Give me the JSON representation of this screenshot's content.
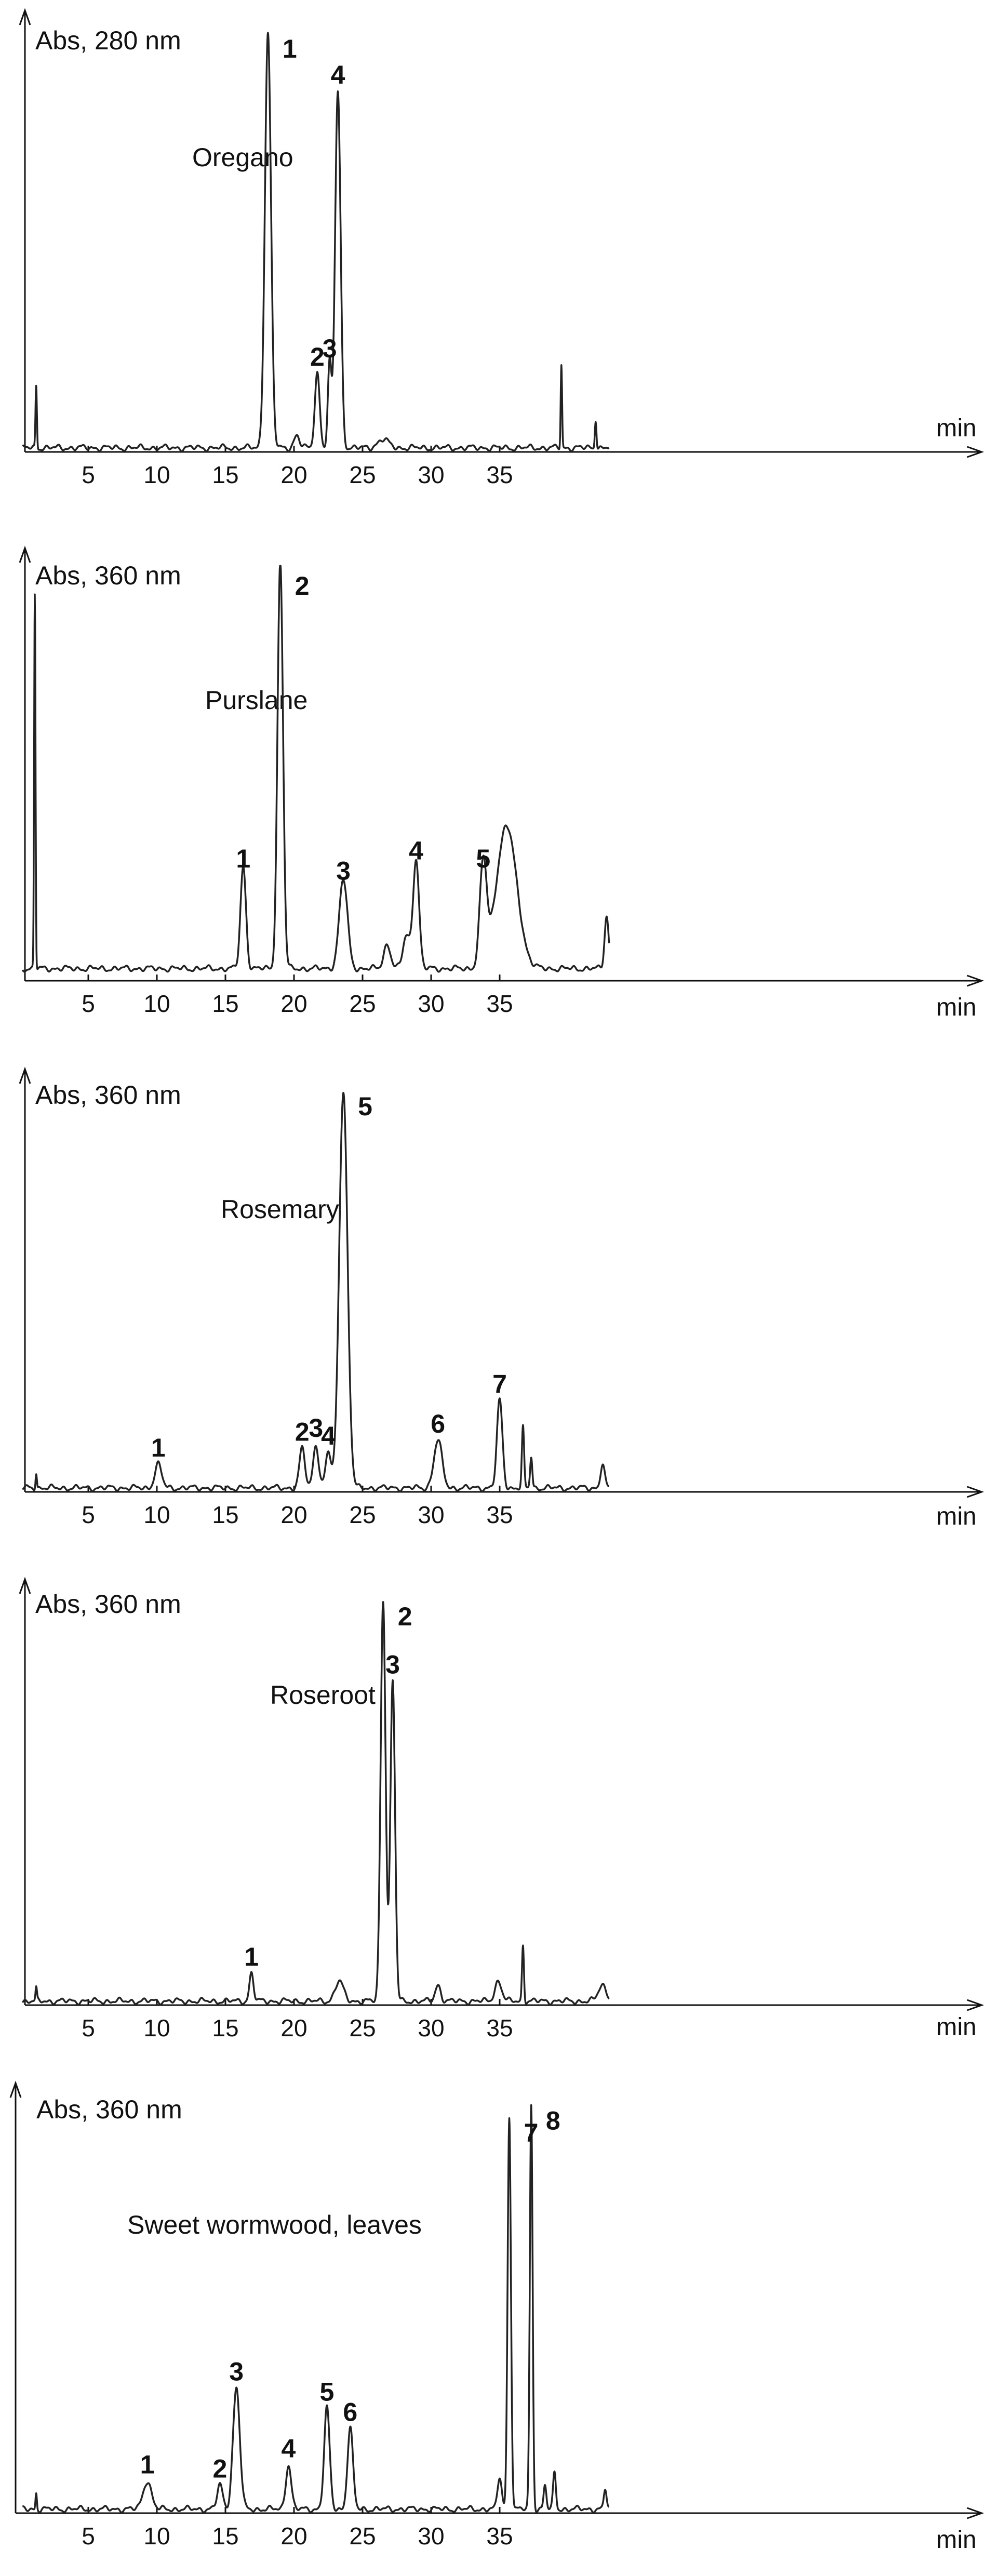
{
  "chart_data": [
    {
      "type": "line",
      "sample": "Oregano",
      "ylabel": "Abs, 280 nm",
      "xlabel": "min",
      "xlim": [
        0,
        43
      ],
      "xticks": [
        5,
        10,
        15,
        20,
        25,
        30,
        35
      ],
      "xtick_labels": [
        "5",
        "10",
        "15",
        "20",
        "25",
        "30",
        "35"
      ],
      "ylim": [
        0,
        1
      ],
      "grid": false,
      "baseline": 0.01,
      "peaks": [
        {
          "x": 1.2,
          "h": 0.15,
          "w": 0.05
        },
        {
          "x": 18.1,
          "h": 1.0,
          "w": 0.22
        },
        {
          "x": 20.2,
          "h": 0.03,
          "w": 0.2
        },
        {
          "x": 21.7,
          "h": 0.18,
          "w": 0.18
        },
        {
          "x": 22.6,
          "h": 0.2,
          "w": 0.13
        },
        {
          "x": 23.2,
          "h": 0.86,
          "w": 0.2
        },
        {
          "x": 26.5,
          "h": 0.02,
          "w": 0.4
        },
        {
          "x": 39.5,
          "h": 0.2,
          "w": 0.05
        },
        {
          "x": 42.0,
          "h": 0.07,
          "w": 0.06
        }
      ],
      "peak_labels": [
        {
          "label": "1",
          "x": 18.1,
          "y": 1.0
        },
        {
          "label": "2",
          "x": 21.7,
          "y": 0.18
        },
        {
          "label": "3",
          "x": 22.6,
          "y": 0.2
        },
        {
          "label": "4",
          "x": 23.2,
          "y": 0.86
        }
      ]
    },
    {
      "type": "line",
      "sample": "Purslane",
      "ylabel": "Abs, 360 nm",
      "xlabel": "min",
      "xlim": [
        0,
        43
      ],
      "xticks": [
        5,
        10,
        15,
        20,
        25,
        30,
        35
      ],
      "xtick_labels": [
        "5",
        "10",
        "15",
        "20",
        "25",
        "30",
        "35"
      ],
      "ylim": [
        0,
        1
      ],
      "grid": false,
      "baseline": 0.03,
      "peaks": [
        {
          "x": 1.1,
          "h": 0.92,
          "w": 0.05
        },
        {
          "x": 16.3,
          "h": 0.25,
          "w": 0.2
        },
        {
          "x": 19.0,
          "h": 1.0,
          "w": 0.2
        },
        {
          "x": 23.6,
          "h": 0.22,
          "w": 0.3
        },
        {
          "x": 26.8,
          "h": 0.06,
          "w": 0.25
        },
        {
          "x": 28.2,
          "h": 0.08,
          "w": 0.25
        },
        {
          "x": 28.9,
          "h": 0.27,
          "w": 0.22
        },
        {
          "x": 33.8,
          "h": 0.25,
          "w": 0.25
        },
        {
          "x": 35.5,
          "h": 0.35,
          "w": 0.75
        },
        {
          "x": 42.8,
          "h": 0.13,
          "w": 0.15
        }
      ],
      "peak_labels": [
        {
          "label": "1",
          "x": 16.3,
          "y": 0.25
        },
        {
          "label": "2",
          "x": 19.0,
          "y": 1.0
        },
        {
          "label": "3",
          "x": 23.6,
          "y": 0.22
        },
        {
          "label": "4",
          "x": 28.9,
          "y": 0.27
        },
        {
          "label": "5",
          "x": 33.8,
          "y": 0.25
        }
      ]
    },
    {
      "type": "line",
      "sample": "Rosemary",
      "ylabel": "Abs, 360 nm",
      "xlabel": "min",
      "xlim": [
        0,
        43
      ],
      "xticks": [
        5,
        10,
        15,
        20,
        25,
        30,
        35
      ],
      "xtick_labels": [
        "5",
        "10",
        "15",
        "20",
        "25",
        "30",
        "35"
      ],
      "ylim": [
        0,
        1
      ],
      "grid": false,
      "baseline": 0.01,
      "peaks": [
        {
          "x": 1.2,
          "h": 0.04,
          "w": 0.05
        },
        {
          "x": 10.1,
          "h": 0.06,
          "w": 0.25
        },
        {
          "x": 20.6,
          "h": 0.1,
          "w": 0.2
        },
        {
          "x": 21.6,
          "h": 0.11,
          "w": 0.2
        },
        {
          "x": 22.5,
          "h": 0.09,
          "w": 0.2
        },
        {
          "x": 23.6,
          "h": 1.0,
          "w": 0.3
        },
        {
          "x": 30.5,
          "h": 0.12,
          "w": 0.3
        },
        {
          "x": 35.0,
          "h": 0.22,
          "w": 0.2
        },
        {
          "x": 36.7,
          "h": 0.15,
          "w": 0.08
        },
        {
          "x": 37.3,
          "h": 0.08,
          "w": 0.08
        },
        {
          "x": 42.5,
          "h": 0.06,
          "w": 0.15
        }
      ],
      "peak_labels": [
        {
          "label": "1",
          "x": 10.1,
          "y": 0.06
        },
        {
          "label": "2",
          "x": 20.6,
          "y": 0.1
        },
        {
          "label": "3",
          "x": 21.6,
          "y": 0.11
        },
        {
          "label": "4",
          "x": 22.5,
          "y": 0.09
        },
        {
          "label": "5",
          "x": 23.6,
          "y": 1.0
        },
        {
          "label": "6",
          "x": 30.5,
          "y": 0.12
        },
        {
          "label": "7",
          "x": 35.0,
          "y": 0.22
        }
      ]
    },
    {
      "type": "line",
      "sample": "Roseroot",
      "ylabel": "Abs, 360 nm",
      "xlabel": "min",
      "xlim": [
        0,
        43
      ],
      "xticks": [
        5,
        10,
        15,
        20,
        25,
        30,
        35
      ],
      "xtick_labels": [
        "5",
        "10",
        "15",
        "20",
        "25",
        "30",
        "35"
      ],
      "ylim": [
        0,
        1
      ],
      "grid": false,
      "baseline": 0.01,
      "peaks": [
        {
          "x": 1.2,
          "h": 0.03,
          "w": 0.05
        },
        {
          "x": 16.9,
          "h": 0.07,
          "w": 0.15
        },
        {
          "x": 23.3,
          "h": 0.05,
          "w": 0.3
        },
        {
          "x": 26.5,
          "h": 1.0,
          "w": 0.18
        },
        {
          "x": 27.2,
          "h": 0.8,
          "w": 0.17
        },
        {
          "x": 30.5,
          "h": 0.04,
          "w": 0.2
        },
        {
          "x": 34.9,
          "h": 0.05,
          "w": 0.25
        },
        {
          "x": 36.7,
          "h": 0.14,
          "w": 0.07
        },
        {
          "x": 42.5,
          "h": 0.04,
          "w": 0.3
        }
      ],
      "peak_labels": [
        {
          "label": "1",
          "x": 16.9,
          "y": 0.07
        },
        {
          "label": "2",
          "x": 26.5,
          "y": 1.0
        },
        {
          "label": "3",
          "x": 27.2,
          "y": 0.8
        }
      ]
    },
    {
      "type": "line",
      "sample": "Sweet wormwood, leaves",
      "ylabel": "Abs, 360 nm",
      "xlabel": "min",
      "xlim": [
        0,
        43
      ],
      "xticks": [
        5,
        10,
        15,
        20,
        25,
        30,
        35
      ],
      "xtick_labels": [
        "5",
        "10",
        "15",
        "20",
        "25",
        "30",
        "35"
      ],
      "ylim": [
        0,
        1
      ],
      "grid": false,
      "baseline": 0.01,
      "peaks": [
        {
          "x": 1.2,
          "h": 0.04,
          "w": 0.05
        },
        {
          "x": 9.3,
          "h": 0.07,
          "w": 0.3
        },
        {
          "x": 14.6,
          "h": 0.06,
          "w": 0.2
        },
        {
          "x": 15.8,
          "h": 0.3,
          "w": 0.25
        },
        {
          "x": 19.6,
          "h": 0.11,
          "w": 0.2
        },
        {
          "x": 22.4,
          "h": 0.25,
          "w": 0.2
        },
        {
          "x": 24.1,
          "h": 0.2,
          "w": 0.2
        },
        {
          "x": 35.0,
          "h": 0.08,
          "w": 0.15
        },
        {
          "x": 35.7,
          "h": 0.97,
          "w": 0.12
        },
        {
          "x": 37.3,
          "h": 1.0,
          "w": 0.1
        },
        {
          "x": 38.3,
          "h": 0.06,
          "w": 0.1
        },
        {
          "x": 39.0,
          "h": 0.09,
          "w": 0.1
        },
        {
          "x": 42.7,
          "h": 0.05,
          "w": 0.1
        }
      ],
      "peak_labels": [
        {
          "label": "1",
          "x": 9.3,
          "y": 0.07
        },
        {
          "label": "2",
          "x": 14.6,
          "y": 0.06
        },
        {
          "label": "3",
          "x": 15.8,
          "y": 0.3
        },
        {
          "label": "4",
          "x": 19.6,
          "y": 0.11
        },
        {
          "label": "5",
          "x": 22.4,
          "y": 0.25
        },
        {
          "label": "6",
          "x": 24.1,
          "y": 0.2
        },
        {
          "label": "7",
          "x": 35.7,
          "y": 0.97
        },
        {
          "label": "8",
          "x": 37.3,
          "y": 1.0
        }
      ]
    }
  ]
}
